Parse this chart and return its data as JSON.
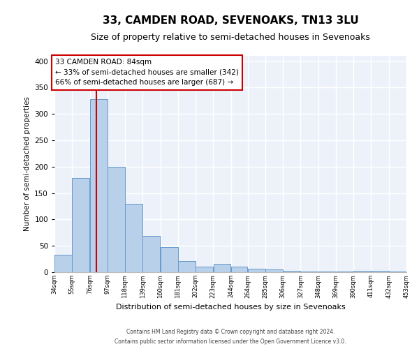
{
  "title": "33, CAMDEN ROAD, SEVENOAKS, TN13 3LU",
  "subtitle": "Size of property relative to semi-detached houses in Sevenoaks",
  "xlabel": "Distribution of semi-detached houses by size in Sevenoaks",
  "ylabel": "Number of semi-detached properties",
  "bar_color": "#b8d0ea",
  "bar_edge_color": "#6699cc",
  "background_color": "#edf2fa",
  "grid_color": "#ffffff",
  "red_line_x": 84,
  "bin_edges": [
    34,
    55,
    76,
    97,
    118,
    139,
    160,
    181,
    202,
    223,
    244,
    264,
    285,
    306,
    327,
    348,
    369,
    390,
    411,
    432,
    453
  ],
  "bar_heights": [
    33,
    178,
    328,
    200,
    130,
    69,
    47,
    21,
    11,
    16,
    10,
    7,
    5,
    3,
    1,
    1,
    1,
    3,
    2,
    1,
    2
  ],
  "tick_labels": [
    "34sqm",
    "55sqm",
    "76sqm",
    "97sqm",
    "118sqm",
    "139sqm",
    "160sqm",
    "181sqm",
    "202sqm",
    "223sqm",
    "244sqm",
    "264sqm",
    "285sqm",
    "306sqm",
    "327sqm",
    "348sqm",
    "369sqm",
    "390sqm",
    "411sqm",
    "432sqm",
    "453sqm"
  ],
  "ylim": [
    0,
    410
  ],
  "yticks": [
    0,
    50,
    100,
    150,
    200,
    250,
    300,
    350,
    400
  ],
  "annotation_title": "33 CAMDEN ROAD: 84sqm",
  "annotation_line1": "← 33% of semi-detached houses are smaller (342)",
  "annotation_line2": "66% of semi-detached houses are larger (687) →",
  "footer1": "Contains HM Land Registry data © Crown copyright and database right 2024.",
  "footer2": "Contains public sector information licensed under the Open Government Licence v3.0.",
  "title_fontsize": 11,
  "subtitle_fontsize": 9,
  "annotation_box_edge_color": "#cc0000",
  "red_line_color": "#cc0000"
}
